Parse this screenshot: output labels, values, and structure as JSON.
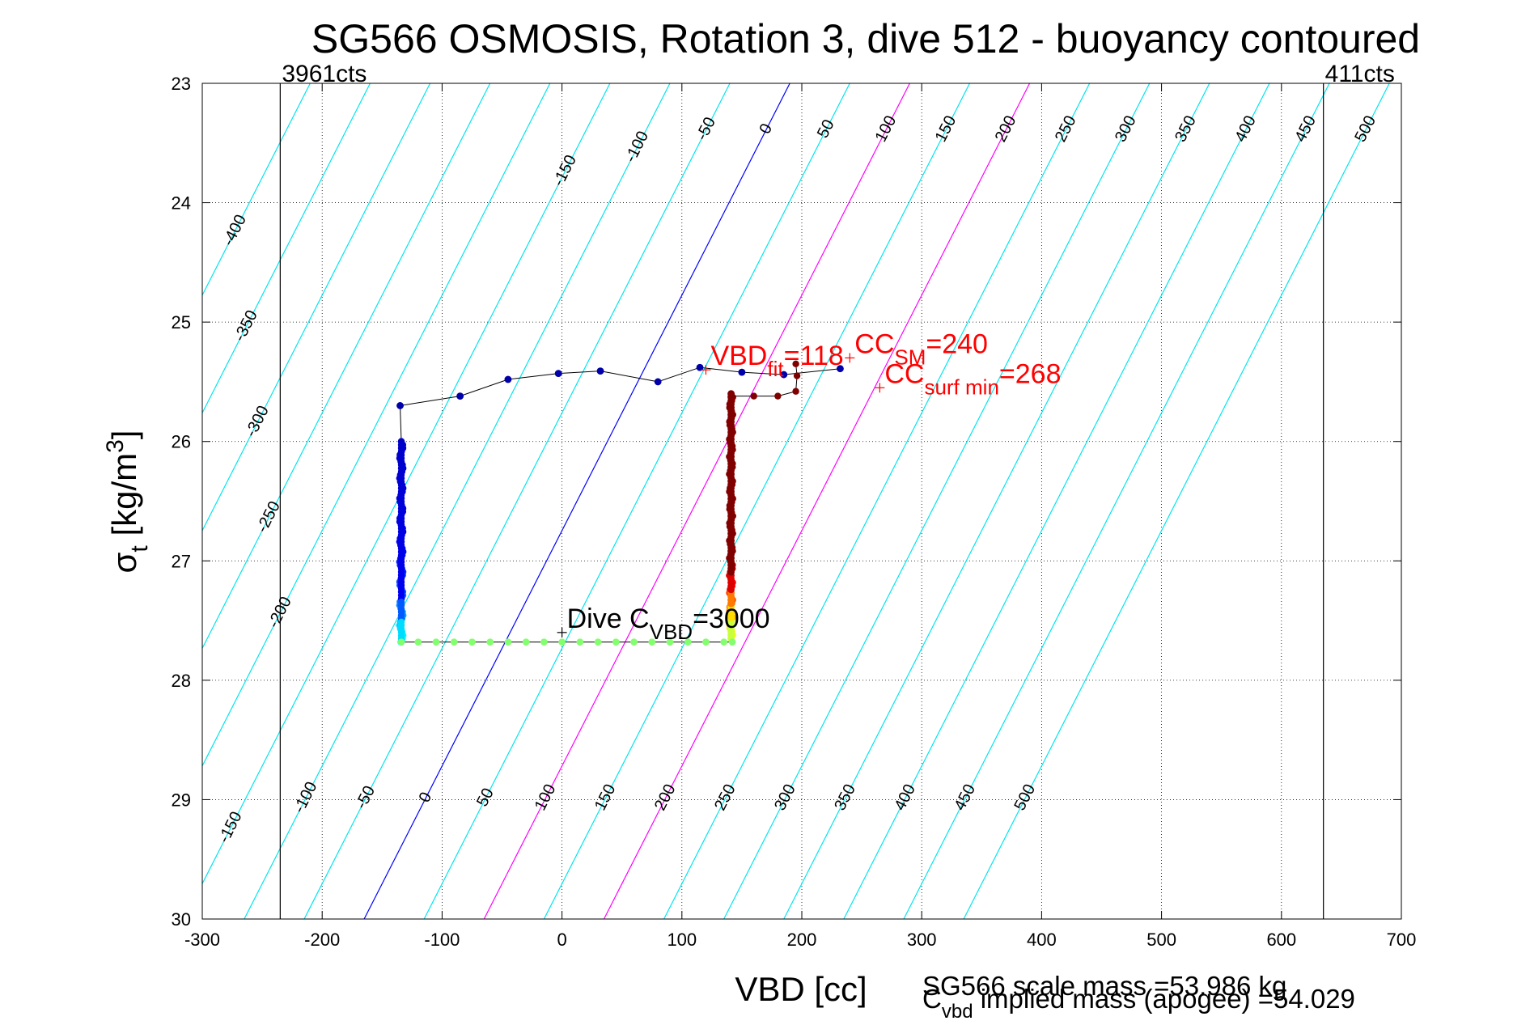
{
  "chart_data": {
    "type": "scatter",
    "title": "SG566 OSMOSIS, Rotation 3, dive 512 - buoyancy contoured",
    "xlabel": "VBD [cc]",
    "ylabel_main": "σ",
    "ylabel_sub": "t",
    "ylabel_units": " [kg/m",
    "ylabel_sup": "3",
    "ylabel_close": "]",
    "xlim": [
      -300,
      700
    ],
    "ylim": [
      23,
      30
    ],
    "y_reversed": true,
    "grid": true,
    "xticks": [
      -300,
      -200,
      -100,
      0,
      100,
      200,
      300,
      400,
      500,
      600,
      700
    ],
    "yticks": [
      23,
      24,
      25,
      26,
      27,
      28,
      29,
      30
    ],
    "limit_lines": [
      {
        "x": -235,
        "label": "3961cts"
      },
      {
        "x": 635,
        "label": "411cts"
      }
    ],
    "buoyancy_contours": {
      "levels": [
        -400,
        -350,
        -300,
        -250,
        -200,
        -150,
        -100,
        -50,
        0,
        50,
        100,
        150,
        200,
        250,
        300,
        350,
        400,
        450,
        500
      ],
      "vbd_at_sigma23_for_zero": 190,
      "vbd_at_sigma30_for_zero": -165,
      "highlight_zero": "#0000ff",
      "highlight_magenta": [
        100,
        200
      ],
      "default_color": "#00e5ee",
      "magenta_color": "#ff00ff"
    },
    "contour_labels_top": [
      "-400",
      "-350",
      "-300",
      "-250",
      "-200",
      "-150",
      "-100",
      "-50",
      "0",
      "50",
      "100",
      "150",
      "200",
      "250",
      "300",
      "350",
      "400",
      "450",
      "500"
    ],
    "contour_labels_bottom": [
      "-150",
      "-100",
      "-50",
      "0",
      "50",
      "100",
      "150",
      "200",
      "250",
      "300",
      "350",
      "400",
      "450",
      "500"
    ],
    "dive_points": [
      {
        "x": -135,
        "y": 25.7
      },
      {
        "x": -85,
        "y": 25.62
      },
      {
        "x": -45,
        "y": 25.48
      },
      {
        "x": -3,
        "y": 25.43
      },
      {
        "x": 32,
        "y": 25.41
      },
      {
        "x": 80,
        "y": 25.5
      },
      {
        "x": 115,
        "y": 25.38
      },
      {
        "x": 150,
        "y": 25.42
      },
      {
        "x": 185,
        "y": 25.44
      },
      {
        "x": 232,
        "y": 25.39
      }
    ],
    "descent_column": {
      "x": -134,
      "y_start": 26.0,
      "y_end": 27.68
    },
    "bottom_points_x": [
      -134,
      -120,
      -105,
      -90,
      -75,
      -60,
      -45,
      -30,
      -15,
      0,
      15,
      30,
      45,
      60,
      75,
      90,
      105,
      120,
      135,
      142
    ],
    "bottom_sigma": 27.68,
    "ascent_column": {
      "x": 141,
      "y_start": 25.6,
      "y_end": 27.65
    },
    "ascent_hook": [
      {
        "x": 141,
        "y": 25.62
      },
      {
        "x": 160,
        "y": 25.62
      },
      {
        "x": 180,
        "y": 25.62
      },
      {
        "x": 195,
        "y": 25.58
      },
      {
        "x": 196,
        "y": 25.45
      },
      {
        "x": 195,
        "y": 25.35
      }
    ],
    "annotations": [
      {
        "key": "vbd_fit",
        "text": "VBD",
        "sub": "fit",
        "rest": "=118",
        "x": 120,
        "y": 25.4,
        "color": "#ff0000"
      },
      {
        "key": "cc_sm",
        "text": "CC",
        "sub": "SM",
        "rest": "=240",
        "x": 240,
        "y": 25.3,
        "color": "#ff0000"
      },
      {
        "key": "cc_surf",
        "text": "CC",
        "sub": "surf min",
        "rest": "=268",
        "x": 265,
        "y": 25.55,
        "color": "#ff0000"
      },
      {
        "key": "dive_cvbd",
        "text": "Dive C",
        "sub": "VBD",
        "rest": "=3000",
        "x": 0,
        "y": 27.6,
        "color": "#000000"
      }
    ],
    "mass_scale": "SG566 scale mass =53.986 kg",
    "mass_implied": "C",
    "mass_implied_sub": "vbd",
    "mass_implied_rest": " implied mass (apogee) =54.029"
  }
}
